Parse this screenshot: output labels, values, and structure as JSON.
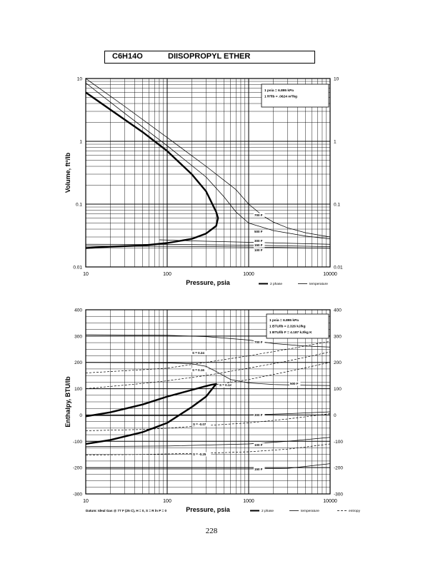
{
  "header": {
    "formula": "C6H14O",
    "name": "DIISOPROPYL ETHER"
  },
  "page_number": "228",
  "chart_data": [
    {
      "type": "line",
      "xlabel": "Pressure,  psia",
      "ylabel": "Volume, ft^3/lb",
      "x_scale": "log",
      "y_scale": "log",
      "xlim": [
        10,
        10000
      ],
      "ylim": [
        0.01,
        10
      ],
      "grid": true,
      "x_ticks": [
        "10",
        "100",
        "1000",
        "10000"
      ],
      "y_ticks": [
        "10",
        "1",
        "0.1",
        "0.01"
      ],
      "y_ticks_right": [
        "10",
        "1",
        "0.1",
        "0.01"
      ],
      "conversions": [
        "1 psia = 6.895 kPa",
        "1 ft^3/lb = .0624 m^3/kg"
      ],
      "legend": [
        {
          "label": "2 phase",
          "style": "thick"
        },
        {
          "label": "temperature",
          "style": "thin"
        }
      ],
      "legend_position": "bottom-right",
      "series": [
        {
          "name": "2 phase",
          "style": "thick",
          "x": [
            10,
            20,
            50,
            100,
            200,
            300,
            400,
            420,
            400,
            300,
            200,
            100,
            50,
            20,
            10
          ],
          "y": [
            6.0,
            3.2,
            1.4,
            0.7,
            0.3,
            0.16,
            0.075,
            0.06,
            0.045,
            0.034,
            0.028,
            0.024,
            0.022,
            0.021,
            0.02
          ]
        },
        {
          "name": "700 F",
          "style": "thin",
          "x": [
            10,
            30,
            100,
            300,
            700,
            1000,
            1500,
            2000,
            3000,
            5000,
            10000
          ],
          "y": [
            10,
            3.6,
            1.15,
            0.4,
            0.17,
            0.1,
            0.065,
            0.052,
            0.042,
            0.035,
            0.03
          ]
        },
        {
          "name": "500 F",
          "style": "thin",
          "x": [
            10,
            30,
            100,
            300,
            500,
            700,
            1000,
            2000,
            5000,
            10000
          ],
          "y": [
            8.5,
            2.8,
            0.85,
            0.27,
            0.13,
            0.075,
            0.05,
            0.038,
            0.031,
            0.028
          ]
        },
        {
          "name": "300 F",
          "style": "thin",
          "x": [
            80,
            200,
            10000
          ],
          "y": [
            0.027,
            0.026,
            0.023
          ]
        },
        {
          "name": "150 F",
          "style": "thin",
          "x": [
            10,
            100,
            1000,
            10000
          ],
          "y": [
            0.023,
            0.0228,
            0.0222,
            0.021
          ]
        },
        {
          "name": "100 F",
          "style": "thin",
          "x": [
            10,
            100,
            1000,
            10000
          ],
          "y": [
            0.0215,
            0.0213,
            0.0208,
            0.0198
          ]
        }
      ],
      "annotations": [
        "700 F",
        "500 F",
        "300 F",
        "150 F",
        "100 F"
      ]
    },
    {
      "type": "line",
      "xlabel": "Pressure,  psia",
      "ylabel": "Enthalpy, BTU/lb",
      "x_scale": "log",
      "y_scale": "linear",
      "xlim": [
        10,
        10000
      ],
      "ylim": [
        -300,
        400
      ],
      "grid": true,
      "x_ticks": [
        "10",
        "100",
        "1000",
        "10000"
      ],
      "y_ticks": [
        "400",
        "300",
        "200",
        "100",
        "0",
        "-100",
        "-200",
        "-300"
      ],
      "y_ticks_right": [
        "400",
        "300",
        "200",
        "100",
        "0",
        "-100",
        "-200",
        "-300"
      ],
      "conversions": [
        "1 psia = 6.895 kPa",
        "1 BTU/lb = 2.326 kJ/kg",
        "1 BTU/lb F = 4.187 kJ/kg K"
      ],
      "datum": "Datum: Ideal Gas @ 77 F (25 C),  H = 0,  S = R ln P = 0",
      "legend": [
        {
          "label": "2 phase",
          "style": "thick"
        },
        {
          "label": "temperature",
          "style": "thin"
        },
        {
          "label": "entropy",
          "style": "dashed"
        }
      ],
      "legend_position": "bottom-right",
      "series": [
        {
          "name": "2 phase",
          "style": "thick",
          "x": [
            10,
            20,
            50,
            100,
            200,
            300,
            350,
            400,
            380,
            300,
            200,
            100,
            50,
            20,
            10
          ],
          "y": [
            -5,
            10,
            40,
            70,
            95,
            110,
            115,
            118,
            110,
            70,
            30,
            -30,
            -65,
            -95,
            -110
          ]
        },
        {
          "name": "700 F",
          "style": "thin",
          "x": [
            10,
            100,
            300,
            1000,
            2000,
            5000,
            10000
          ],
          "y": [
            305,
            303,
            298,
            285,
            272,
            262,
            258
          ]
        },
        {
          "name": "500 F",
          "style": "thin",
          "x": [
            10,
            100,
            200,
            300,
            400,
            600,
            1000,
            2000,
            5000,
            10000
          ],
          "y": [
            200,
            198,
            195,
            185,
            165,
            135,
            122,
            116,
            113,
            112
          ]
        },
        {
          "name": "300 F",
          "style": "thin",
          "x": [
            10,
            100,
            1000,
            3000,
            10000
          ],
          "y": [
            -2,
            -2,
            0,
            5,
            12
          ]
        },
        {
          "name": "100 F",
          "style": "thin",
          "x": [
            10,
            100,
            1000,
            3000,
            10000
          ],
          "y": [
            -120,
            -118,
            -110,
            -100,
            -85
          ]
        },
        {
          "name": "150 F",
          "style": "thin",
          "x": [
            10,
            100,
            1000,
            3000,
            10000
          ],
          "y": [
            -205,
            -205,
            -205,
            -203,
            -185
          ]
        },
        {
          "name": "S = 0.24",
          "style": "dashed",
          "x": [
            10,
            50,
            100,
            300,
            1000,
            3000,
            10000
          ],
          "y": [
            160,
            172,
            178,
            200,
            225,
            250,
            280
          ]
        },
        {
          "name": "S = 0.16",
          "style": "dashed",
          "x": [
            10,
            50,
            100,
            300,
            1000,
            3000,
            10000
          ],
          "y": [
            100,
            120,
            130,
            150,
            178,
            205,
            240
          ]
        },
        {
          "name": "S = 0.12",
          "style": "dashed",
          "x": [
            300,
            1000,
            3000,
            10000
          ],
          "y": [
            110,
            135,
            165,
            200
          ]
        },
        {
          "name": "S = -0.07",
          "style": "dashed",
          "x": [
            10,
            50,
            100,
            300,
            1000,
            3000,
            10000
          ],
          "y": [
            -60,
            -55,
            -50,
            -40,
            -30,
            -15,
            5
          ]
        },
        {
          "name": "S = -0.25",
          "style": "dashed",
          "x": [
            10,
            50,
            100,
            300,
            1000,
            3000,
            10000
          ],
          "y": [
            -152,
            -150,
            -148,
            -145,
            -140,
            -130,
            -110
          ]
        }
      ],
      "annotations": [
        "700 F",
        "S = 0.24",
        "S = 0.16",
        "S = 0.12",
        "500 F",
        "300 F",
        "S = -0.07",
        "100 F",
        "S = -0.25",
        "150 F"
      ]
    }
  ]
}
